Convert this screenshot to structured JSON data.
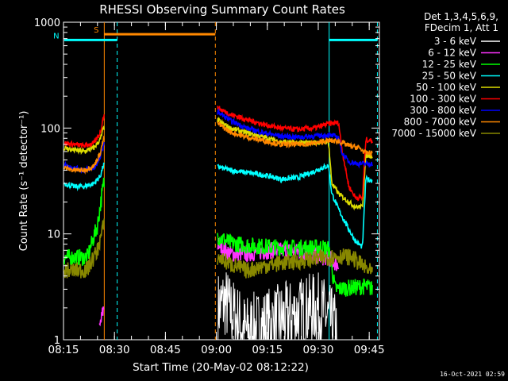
{
  "chart_data": {
    "type": "line",
    "title": "RHESSI Observing Summary Count Rates",
    "xlabel": "Start Time (20-May-02 08:12:22)",
    "ylabel": "Count Rate (s⁻¹ detector⁻¹)",
    "yscale": "log",
    "ylim": [
      1,
      1000
    ],
    "xlim_minutes": [
      8.0,
      101.0
    ],
    "x_unit": "minutes after 08:07",
    "x_ticks": [
      {
        "label": "08:15",
        "t": 8
      },
      {
        "label": "08:30",
        "t": 23
      },
      {
        "label": "08:45",
        "t": 38
      },
      {
        "label": "09:00",
        "t": 53
      },
      {
        "label": "09:15",
        "t": 68
      },
      {
        "label": "09:30",
        "t": 83
      },
      {
        "label": "09:45",
        "t": 98
      }
    ],
    "y_ticks": [
      {
        "label": "1",
        "v": 1
      },
      {
        "label": "10",
        "v": 10
      },
      {
        "label": "100",
        "v": 100
      },
      {
        "label": "1000",
        "v": 1000
      }
    ],
    "legend_header": [
      "Det 1,3,4,5,6,9,",
      "FDecim 1, Att 1"
    ],
    "legend_position": "right",
    "series": [
      {
        "name": "3 - 6 keV",
        "color": "#ffffff",
        "values": [
          [
            53.5,
            2.0
          ],
          [
            55.5,
            2.3
          ],
          [
            57.5,
            1.8
          ],
          [
            59.5,
            1.5
          ],
          [
            61.5,
            1.2
          ],
          [
            82.5,
            2.0
          ],
          [
            84.5,
            1.8
          ],
          [
            86.5,
            1.5
          ],
          [
            88.5,
            1.2
          ]
        ]
      },
      {
        "name": "6 - 12 keV",
        "color": "#ff33ff",
        "values": [
          [
            18.5,
            1.2
          ],
          [
            19.8,
            2.0
          ],
          [
            53.5,
            8.0
          ],
          [
            57,
            6.5
          ],
          [
            62,
            6.5
          ],
          [
            70,
            7.0
          ],
          [
            78,
            6.8
          ],
          [
            84,
            6.0
          ],
          [
            86,
            6.0
          ],
          [
            89,
            5.0
          ]
        ]
      },
      {
        "name": "12 - 25 keV",
        "color": "#00ff00",
        "values": [
          [
            8.2,
            6.0
          ],
          [
            12,
            6.0
          ],
          [
            15,
            6.0
          ],
          [
            18,
            12.0
          ],
          [
            19.8,
            30.0
          ],
          [
            53.5,
            9.5
          ],
          [
            57,
            8.2
          ],
          [
            62,
            7.8
          ],
          [
            70,
            7.5
          ],
          [
            78,
            7.4
          ],
          [
            84,
            7.5
          ],
          [
            86,
            7.2
          ],
          [
            88,
            3.0
          ],
          [
            97,
            3.2
          ],
          [
            99,
            3.0
          ]
        ]
      },
      {
        "name": "25 - 50 keV",
        "color": "#00ffff",
        "values": [
          [
            8.2,
            30
          ],
          [
            11,
            28
          ],
          [
            14,
            28
          ],
          [
            17,
            30
          ],
          [
            18.8,
            35
          ],
          [
            19.8,
            45
          ],
          [
            53.5,
            43
          ],
          [
            57,
            40
          ],
          [
            62,
            38
          ],
          [
            67,
            36
          ],
          [
            72,
            33
          ],
          [
            77,
            34
          ],
          [
            81,
            38
          ],
          [
            84,
            42
          ],
          [
            86,
            44
          ],
          [
            87,
            24
          ],
          [
            89,
            17
          ],
          [
            92,
            11
          ],
          [
            94,
            8.5
          ],
          [
            96,
            7.5
          ],
          [
            97,
            33
          ],
          [
            99,
            32
          ]
        ]
      },
      {
        "name": "50 - 100 keV",
        "color": "#dddd00",
        "values": [
          [
            8.2,
            65
          ],
          [
            11,
            62
          ],
          [
            14,
            60
          ],
          [
            17,
            65
          ],
          [
            18.8,
            78
          ],
          [
            19.8,
            100
          ],
          [
            53.5,
            118
          ],
          [
            57,
            100
          ],
          [
            62,
            90
          ],
          [
            67,
            82
          ],
          [
            72,
            74
          ],
          [
            77,
            72
          ],
          [
            82,
            73
          ],
          [
            86,
            75
          ],
          [
            87,
            30
          ],
          [
            89,
            24
          ],
          [
            92,
            20
          ],
          [
            94,
            18
          ],
          [
            96,
            18
          ],
          [
            97,
            55
          ],
          [
            99,
            55
          ]
        ]
      },
      {
        "name": "100 - 300 keV",
        "color": "#ff0000",
        "values": [
          [
            8.2,
            72
          ],
          [
            11,
            70
          ],
          [
            14,
            68
          ],
          [
            17,
            72
          ],
          [
            18.8,
            90
          ],
          [
            19.8,
            130
          ],
          [
            53.5,
            155
          ],
          [
            57,
            135
          ],
          [
            62,
            120
          ],
          [
            67,
            108
          ],
          [
            72,
            100
          ],
          [
            77,
            97
          ],
          [
            82,
            100
          ],
          [
            86,
            110
          ],
          [
            89,
            112
          ],
          [
            90,
            62
          ],
          [
            92,
            28
          ],
          [
            94,
            22
          ],
          [
            96,
            22
          ],
          [
            97,
            78
          ],
          [
            99,
            75
          ]
        ]
      },
      {
        "name": "300 - 800 keV",
        "color": "#0000ff",
        "values": [
          [
            8.2,
            45
          ],
          [
            11,
            42
          ],
          [
            14,
            40
          ],
          [
            17,
            42
          ],
          [
            18.8,
            52
          ],
          [
            19.8,
            70
          ],
          [
            53.5,
            142
          ],
          [
            57,
            118
          ],
          [
            62,
            100
          ],
          [
            67,
            90
          ],
          [
            72,
            84
          ],
          [
            77,
            82
          ],
          [
            82,
            84
          ],
          [
            86,
            86
          ],
          [
            89,
            82
          ],
          [
            90,
            58
          ],
          [
            92,
            48
          ],
          [
            95,
            46
          ],
          [
            97,
            46
          ],
          [
            99,
            46
          ]
        ]
      },
      {
        "name": "800 - 7000 keV",
        "color": "#ff8800",
        "values": [
          [
            8.2,
            42
          ],
          [
            11,
            40
          ],
          [
            14,
            40
          ],
          [
            17,
            44
          ],
          [
            18.8,
            58
          ],
          [
            19.8,
            80
          ],
          [
            53.5,
            110
          ],
          [
            57,
            92
          ],
          [
            62,
            82
          ],
          [
            67,
            76
          ],
          [
            72,
            70
          ],
          [
            77,
            70
          ],
          [
            82,
            72
          ],
          [
            86,
            76
          ],
          [
            89,
            75
          ],
          [
            92,
            68
          ],
          [
            95,
            65
          ],
          [
            97,
            58
          ],
          [
            99,
            58
          ]
        ]
      },
      {
        "name": "7000 - 15000 keV",
        "color": "#888800",
        "values": [
          [
            8.2,
            4.5
          ],
          [
            12,
            4.5
          ],
          [
            15,
            4.6
          ],
          [
            18,
            7.0
          ],
          [
            19.8,
            12
          ],
          [
            53.5,
            6.0
          ],
          [
            57,
            5.2
          ],
          [
            62,
            4.5
          ],
          [
            67,
            5.0
          ],
          [
            72,
            5.3
          ],
          [
            77,
            5.5
          ],
          [
            82,
            5.8
          ],
          [
            86,
            6.0
          ],
          [
            89,
            6.2
          ],
          [
            93,
            6.0
          ],
          [
            96,
            5.0
          ],
          [
            99,
            4.2
          ]
        ]
      }
    ],
    "annotations": [
      {
        "label": "S",
        "color": "#ff8800",
        "bar_from": 20.0,
        "bar_to": 52.7,
        "level": 770
      },
      {
        "label": "N",
        "color": "#00ffff",
        "bar_from": 8.2,
        "bar_to": 23.8,
        "level": 680
      },
      {
        "label": "",
        "color": "#00ffff",
        "bar_from": 86.2,
        "bar_to": 100.4,
        "level": 680
      }
    ],
    "vertical_lines": [
      {
        "t": 20.0,
        "color": "#ff8800",
        "style": "solid"
      },
      {
        "t": 23.8,
        "color": "#00ffff",
        "style": "dashed"
      },
      {
        "t": 52.7,
        "color": "#ff8800",
        "style": "dashed"
      },
      {
        "t": 86.2,
        "color": "#00ffff",
        "style": "solid"
      },
      {
        "t": 100.4,
        "color": "#00ffff",
        "style": "dashed"
      }
    ],
    "gaps": [
      [
        20.0,
        53.3
      ]
    ],
    "footer_timestamp": "16-Oct-2021 02:59"
  }
}
